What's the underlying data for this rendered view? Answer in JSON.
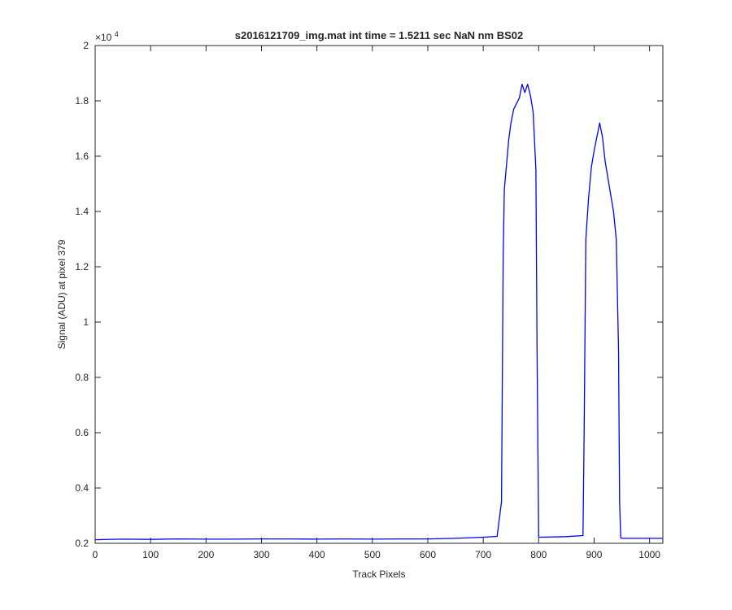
{
  "chart_data": {
    "type": "line",
    "title": "s2016121709_img.mat int time = 1.5211 sec  NaN nm BS02",
    "xlabel": "Track Pixels",
    "ylabel": "Signal (ADU) at pixel 379",
    "y_exponent_label": "×10",
    "y_exponent_power": "4",
    "y_scale_factor": 10000,
    "xlim": [
      0,
      1024
    ],
    "ylim": [
      0.2,
      2.0
    ],
    "x_ticks": [
      0,
      100,
      200,
      300,
      400,
      500,
      600,
      700,
      800,
      900,
      1000
    ],
    "x_tick_labels": [
      "0",
      "100",
      "200",
      "300",
      "400",
      "500",
      "600",
      "700",
      "800",
      "900",
      "1000"
    ],
    "y_ticks": [
      0.2,
      0.4,
      0.6,
      0.8,
      1.0,
      1.2,
      1.4,
      1.6,
      1.8,
      2.0
    ],
    "y_tick_labels": [
      "0.2",
      "0.4",
      "0.6",
      "0.8",
      "1",
      "1.2",
      "1.4",
      "1.6",
      "1.8",
      "2"
    ],
    "grid": false,
    "line_color": "#0000ff",
    "axis_color": "#262626",
    "series": [
      {
        "x": [
          0,
          50,
          100,
          150,
          200,
          250,
          300,
          350,
          400,
          450,
          500,
          550,
          600,
          650,
          700,
          725,
          733,
          736,
          738,
          742,
          746,
          750,
          755,
          760,
          765,
          770,
          775,
          780,
          785,
          790,
          795,
          797,
          800,
          802,
          850,
          880,
          882,
          885,
          890,
          895,
          900,
          905,
          910,
          915,
          920,
          925,
          930,
          935,
          940,
          944,
          946,
          948,
          950,
          1000,
          1024
        ],
        "y": [
          0.213,
          0.215,
          0.214,
          0.216,
          0.215,
          0.215,
          0.216,
          0.216,
          0.215,
          0.216,
          0.215,
          0.216,
          0.216,
          0.218,
          0.222,
          0.225,
          0.35,
          1.25,
          1.48,
          1.57,
          1.66,
          1.72,
          1.77,
          1.79,
          1.81,
          1.86,
          1.83,
          1.86,
          1.82,
          1.76,
          1.55,
          0.9,
          0.222,
          0.222,
          0.224,
          0.228,
          0.6,
          1.3,
          1.45,
          1.56,
          1.62,
          1.67,
          1.72,
          1.67,
          1.58,
          1.52,
          1.46,
          1.4,
          1.3,
          0.9,
          0.35,
          0.22,
          0.218,
          0.218,
          0.218
        ]
      }
    ]
  }
}
